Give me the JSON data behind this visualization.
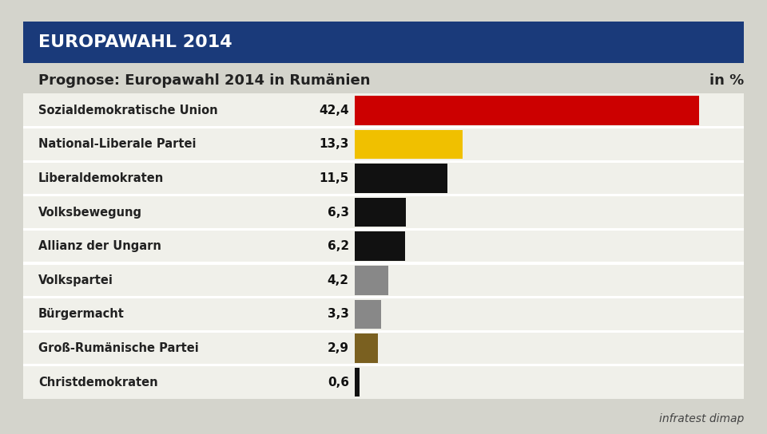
{
  "title_banner": "EUROPAWAHL 2014",
  "subtitle": "Prognose: Europawahl 2014 in Rumänien",
  "subtitle_right": "in %",
  "source": "infratest dimap",
  "categories": [
    "Sozialdemokratische Union",
    "National-Liberale Partei",
    "Liberaldemokraten",
    "Volksbewegung",
    "Allianz der Ungarn",
    "Volkspartei",
    "Bürgermacht",
    "Groß-Rumänische Partei",
    "Christdemokraten"
  ],
  "values": [
    42.4,
    13.3,
    11.5,
    6.3,
    6.2,
    4.2,
    3.3,
    2.9,
    0.6
  ],
  "bar_colors": [
    "#cc0000",
    "#f0c000",
    "#111111",
    "#111111",
    "#111111",
    "#888888",
    "#888888",
    "#7a6020",
    "#111111"
  ],
  "background_color": "#d4d4cc",
  "banner_color": "#1a3a7a",
  "banner_text_color": "#ffffff",
  "subtitle_color": "#222222",
  "label_color": "#222222",
  "value_color": "#111111",
  "bar_area_bg": "#f0f0ea",
  "max_val": 47
}
